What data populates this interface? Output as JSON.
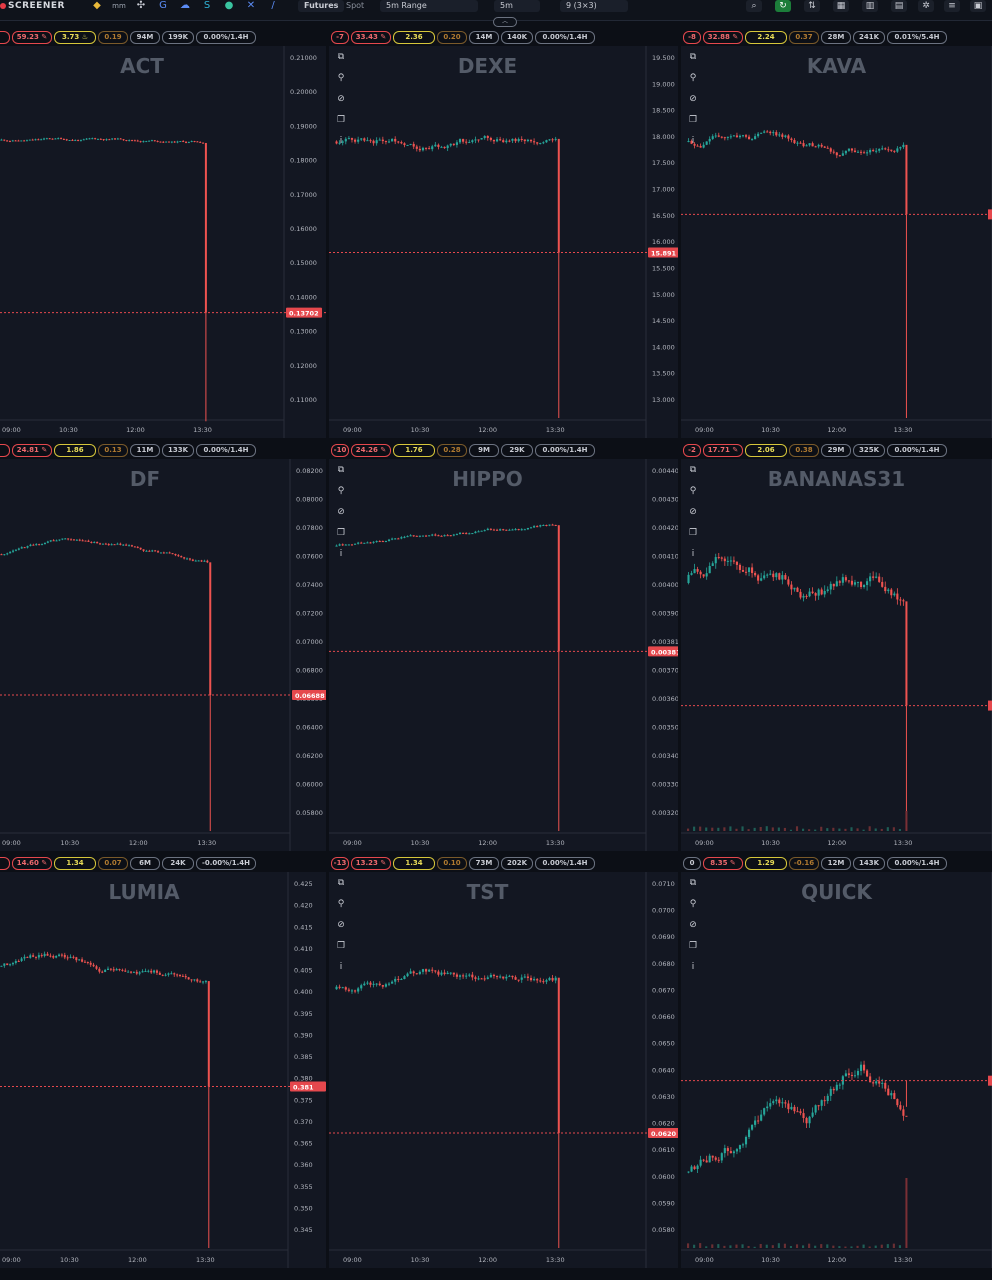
{
  "app": {
    "logo_text": "SCREENER",
    "market_types": [
      "Futures",
      "Spot"
    ],
    "range_label": "5m Range",
    "interval_label": "5m",
    "layout_label": "9 (3×3)",
    "mini_label": "mm"
  },
  "colors": {
    "up": "#26a69a",
    "down": "#ef5350",
    "price_line": "#e5484d",
    "panel_bg": "#131722",
    "page_bg": "#0c0f16",
    "axis_text": "#b2b5be"
  },
  "time_axis_labels": [
    "09:00",
    "10:30",
    "12:00",
    "13:30"
  ],
  "panels": [
    {
      "symbol": "ACT",
      "badges": [
        {
          "text": "",
          "style": "red",
          "partial": true
        },
        {
          "text": "59.23",
          "style": "red",
          "icon": "pin"
        },
        {
          "text": "3.73",
          "style": "yellow",
          "icon": "flame"
        },
        {
          "text": "0.19",
          "style": "orange"
        },
        {
          "text": "94M",
          "style": "gray"
        },
        {
          "text": "199K",
          "style": "gray"
        },
        {
          "text": "0.00%/1.4H",
          "style": "gray"
        }
      ],
      "axis_labels": [
        "0.21000",
        "0.20000",
        "0.19000",
        "0.18000",
        "0.17000",
        "0.16000",
        "0.15000",
        "0.14000",
        "0.13000",
        "0.12000",
        "0.11000"
      ],
      "price_tag": "0.13702",
      "show_tools": false,
      "chart_data": {
        "type": "candlestick",
        "ylim": [
          0.105,
          0.215
        ],
        "base": 0.1895,
        "vol": 0.0003,
        "trend": "flat",
        "crash_to": 0.137,
        "crash_low": 0.104,
        "last_price": 0.13702
      }
    },
    {
      "symbol": "DEXE",
      "badges": [
        {
          "text": "-7",
          "style": "red"
        },
        {
          "text": "33.43",
          "style": "red",
          "icon": "pin"
        },
        {
          "text": "2.36",
          "style": "yellow"
        },
        {
          "text": "0.20",
          "style": "orange"
        },
        {
          "text": "14M",
          "style": "gray"
        },
        {
          "text": "140K",
          "style": "gray"
        },
        {
          "text": "0.00%/1.4H",
          "style": "gray"
        }
      ],
      "axis_labels": [
        "19.500",
        "19.000",
        "18.500",
        "18.000",
        "17.500",
        "17.000",
        "16.500",
        "16.000",
        "15.500",
        "15.000",
        "14.500",
        "14.000",
        "13.500",
        "13.000"
      ],
      "price_tag": "15.891",
      "show_tools": true,
      "chart_data": {
        "type": "candlestick",
        "ylim": [
          12.6,
          19.8
        ],
        "base": 18.1,
        "vol": 0.06,
        "trend": "up-slight",
        "crash_to": 15.891,
        "crash_low": 12.6,
        "last_price": 15.891
      }
    },
    {
      "symbol": "KAVA",
      "badges": [
        {
          "text": "-8",
          "style": "red"
        },
        {
          "text": "32.88",
          "style": "red",
          "icon": "pin"
        },
        {
          "text": "2.24",
          "style": "yellow"
        },
        {
          "text": "0.37",
          "style": "orange"
        },
        {
          "text": "28M",
          "style": "gray"
        },
        {
          "text": "241K",
          "style": "gray"
        },
        {
          "text": "0.01%/5.4H",
          "style": "gray"
        }
      ],
      "axis_labels": [],
      "price_tag": "",
      "show_tools": true,
      "chart_data": {
        "type": "candlestick",
        "ylim": [
          12.6,
          19.8
        ],
        "base": 18.1,
        "vol": 0.06,
        "trend": "wave",
        "crash_to": 16.65,
        "crash_low": 12.6,
        "last_price": 16.65
      }
    },
    {
      "symbol": "DF",
      "badges": [
        {
          "text": "",
          "style": "red",
          "partial": true
        },
        {
          "text": "24.81",
          "style": "red",
          "icon": "pin"
        },
        {
          "text": "1.86",
          "style": "yellow"
        },
        {
          "text": "0.13",
          "style": "orange"
        },
        {
          "text": "11M",
          "style": "gray"
        },
        {
          "text": "133K",
          "style": "gray"
        },
        {
          "text": "0.00%/1.4H",
          "style": "gray"
        }
      ],
      "axis_labels": [
        "0.08200",
        "0.08000",
        "0.07800",
        "0.07600",
        "0.07400",
        "0.07200",
        "0.07000",
        "0.06800",
        "0.06600",
        "0.06400",
        "0.06200",
        "0.06000",
        "0.05800"
      ],
      "price_tag": "0.06688",
      "show_tools": false,
      "chart_data": {
        "type": "candlestick",
        "ylim": [
          0.0573,
          0.0828
        ],
        "base": 0.0768,
        "vol": 8e-05,
        "trend": "down-slight",
        "crash_to": 0.06688,
        "crash_low": 0.0573,
        "last_price": 0.06688
      }
    },
    {
      "symbol": "HIPPO",
      "badges": [
        {
          "text": "-10",
          "style": "red"
        },
        {
          "text": "24.26",
          "style": "red",
          "icon": "pin"
        },
        {
          "text": "1.76",
          "style": "yellow"
        },
        {
          "text": "0.28",
          "style": "orange"
        },
        {
          "text": "9M",
          "style": "gray"
        },
        {
          "text": "29K",
          "style": "gray"
        },
        {
          "text": "0.00%/1.4H",
          "style": "gray"
        }
      ],
      "axis_labels": [
        "0.00440",
        "0.00430",
        "0.00420",
        "0.00410",
        "0.00400",
        "0.00390",
        "0.00381",
        "0.00370",
        "0.00360",
        "0.00350",
        "0.00340",
        "0.00330",
        "0.00320"
      ],
      "price_tag": "0.00381",
      "show_tools": true,
      "chart_data": {
        "type": "candlestick",
        "ylim": [
          0.00318,
          0.00445
        ],
        "base": 0.00418,
        "vol": 4e-06,
        "trend": "up-slight",
        "crash_to": 0.00381,
        "crash_low": 0.00318,
        "last_price": 0.00381
      }
    },
    {
      "symbol": "BANANAS31",
      "badges": [
        {
          "text": "-2",
          "style": "red"
        },
        {
          "text": "17.71",
          "style": "red",
          "icon": "pin"
        },
        {
          "text": "2.06",
          "style": "yellow"
        },
        {
          "text": "0.38",
          "style": "orange"
        },
        {
          "text": "29M",
          "style": "gray"
        },
        {
          "text": "325K",
          "style": "gray"
        },
        {
          "text": "0.00%/1.4H",
          "style": "gray"
        }
      ],
      "axis_labels": [],
      "price_tag": "",
      "show_tools": true,
      "chart_data": {
        "type": "candlestick",
        "ylim": [
          0.00318,
          0.00445
        ],
        "base": 0.00405,
        "vol": 2e-05,
        "trend": "spike-start",
        "crash_to": 0.00362,
        "crash_low": 0.00318,
        "last_price": 0.00362
      }
    },
    {
      "symbol": "LUMIA",
      "badges": [
        {
          "text": "",
          "style": "red",
          "partial": true
        },
        {
          "text": "14.60",
          "style": "red",
          "icon": "pin"
        },
        {
          "text": "1.34",
          "style": "yellow"
        },
        {
          "text": "0.07",
          "style": "orange"
        },
        {
          "text": "6M",
          "style": "gray"
        },
        {
          "text": "24K",
          "style": "gray"
        },
        {
          "text": "-0.00%/1.4H",
          "style": "gray"
        }
      ],
      "axis_labels": [
        "0.425",
        "0.420",
        "0.415",
        "0.410",
        "0.405",
        "0.400",
        "0.395",
        "0.390",
        "0.385",
        "0.380",
        "0.375",
        "0.370",
        "0.365",
        "0.360",
        "0.355",
        "0.350",
        "0.345"
      ],
      "price_tag": "0.381",
      "show_tools": false,
      "chart_data": {
        "type": "candlestick",
        "ylim": [
          0.3435,
          0.4285
        ],
        "base": 0.409,
        "vol": 0.0006,
        "trend": "down-slight",
        "crash_to": 0.381,
        "crash_low": 0.3435,
        "last_price": 0.381
      }
    },
    {
      "symbol": "TST",
      "badges": [
        {
          "text": "-13",
          "style": "red"
        },
        {
          "text": "13.23",
          "style": "red",
          "icon": "pin"
        },
        {
          "text": "1.34",
          "style": "yellow"
        },
        {
          "text": "0.10",
          "style": "orange"
        },
        {
          "text": "73M",
          "style": "gray"
        },
        {
          "text": "202K",
          "style": "gray"
        },
        {
          "text": "0.00%/1.4H",
          "style": "gray"
        }
      ],
      "axis_labels": [
        "0.0710",
        "0.0700",
        "0.0690",
        "0.0680",
        "0.0670",
        "0.0660",
        "0.0650",
        "0.0640",
        "0.0630",
        "0.0620",
        "0.0610",
        "0.0600",
        "0.0590",
        "0.0580"
      ],
      "price_tag": "0.0620",
      "show_tools": true,
      "chart_data": {
        "type": "candlestick",
        "ylim": [
          0.0576,
          0.0716
        ],
        "base": 0.0675,
        "vol": 0.00012,
        "trend": "wave",
        "crash_to": 0.062,
        "crash_low": 0.0576,
        "last_price": 0.062
      }
    },
    {
      "symbol": "QUICK",
      "badges": [
        {
          "text": "0",
          "style": "gray"
        },
        {
          "text": "8.35",
          "style": "red",
          "icon": "pin"
        },
        {
          "text": "1.29",
          "style": "yellow"
        },
        {
          "text": "-0.16",
          "style": "orange"
        },
        {
          "text": "12M",
          "style": "gray"
        },
        {
          "text": "143K",
          "style": "gray"
        },
        {
          "text": "0.00%/1.4H",
          "style": "gray"
        }
      ],
      "axis_labels": [],
      "price_tag": "",
      "show_tools": true,
      "chart_data": {
        "type": "candlestick",
        "ylim": [
          0.0576,
          0.0716
        ],
        "base": 0.0605,
        "vol": 0.0002,
        "trend": "rally",
        "crash_to": 0.064,
        "crash_low": 0.063,
        "last_price": 0.064
      }
    }
  ]
}
